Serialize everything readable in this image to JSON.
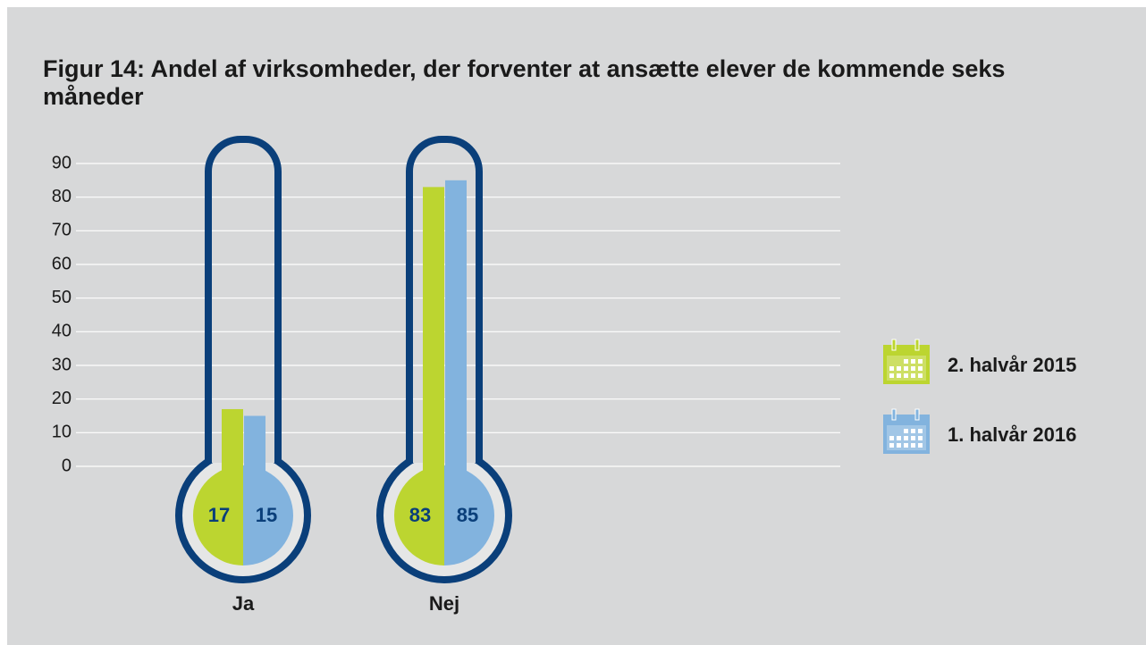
{
  "chart_data": {
    "type": "bar",
    "title": "Figur 14: Andel af virksomheder, der forventer at ansætte elever de kommende seks måneder",
    "categories": [
      "Ja",
      "Nej"
    ],
    "series": [
      {
        "name": "2. halvår 2015",
        "color": "#bcd530",
        "values": [
          17,
          83
        ]
      },
      {
        "name": "1. halvår 2016",
        "color": "#82b3de",
        "values": [
          15,
          85
        ]
      }
    ],
    "ylim": [
      0,
      90
    ],
    "yticks": [
      0,
      10,
      20,
      30,
      40,
      50,
      60,
      70,
      80,
      90
    ],
    "grid": true
  }
}
